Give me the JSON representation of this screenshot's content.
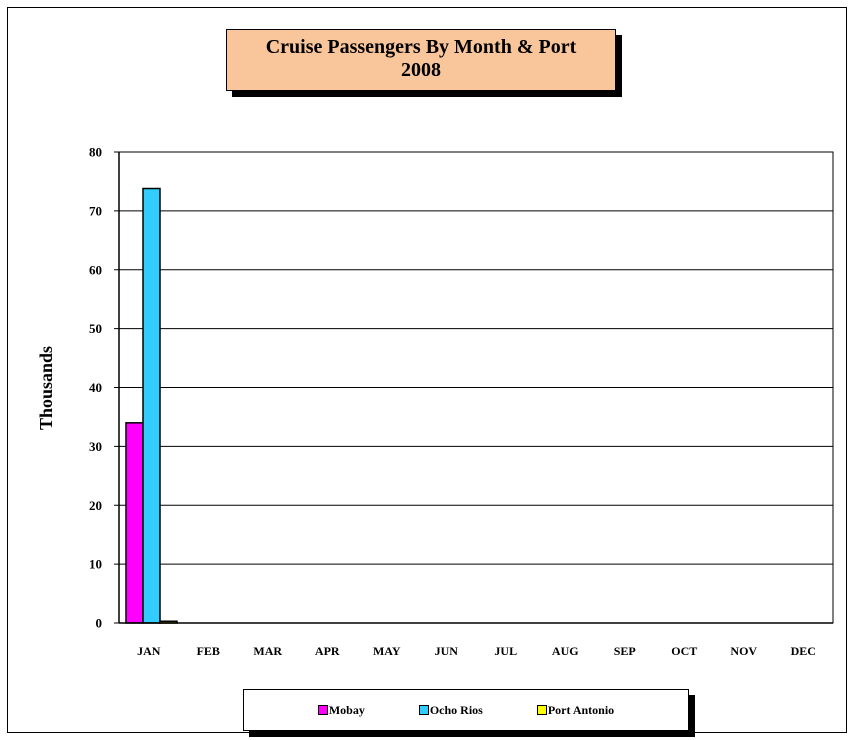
{
  "chart_data": {
    "type": "bar",
    "title": "Cruise Passengers By Month & Port",
    "subtitle": "2008",
    "ylabel": "Thousands",
    "xlabel": "",
    "ylim": [
      0,
      80
    ],
    "yticks": [
      0,
      10,
      20,
      30,
      40,
      50,
      60,
      70,
      80
    ],
    "categories": [
      "JAN",
      "FEB",
      "MAR",
      "APR",
      "MAY",
      "JUN",
      "JUL",
      "AUG",
      "SEP",
      "OCT",
      "NOV",
      "DEC"
    ],
    "series": [
      {
        "name": "Mobay",
        "color": "#ff00ff",
        "values": [
          34,
          0,
          0,
          0,
          0,
          0,
          0,
          0,
          0,
          0,
          0,
          0
        ]
      },
      {
        "name": "Ocho Rios",
        "color": "#33ccff",
        "values": [
          73.8,
          0,
          0,
          0,
          0,
          0,
          0,
          0,
          0,
          0,
          0,
          0
        ]
      },
      {
        "name": "Port Antonio",
        "color": "#ffff00",
        "values": [
          0.3,
          0,
          0,
          0,
          0,
          0,
          0,
          0,
          0,
          0,
          0,
          0
        ]
      }
    ],
    "grid": true,
    "legend_position": "bottom"
  }
}
